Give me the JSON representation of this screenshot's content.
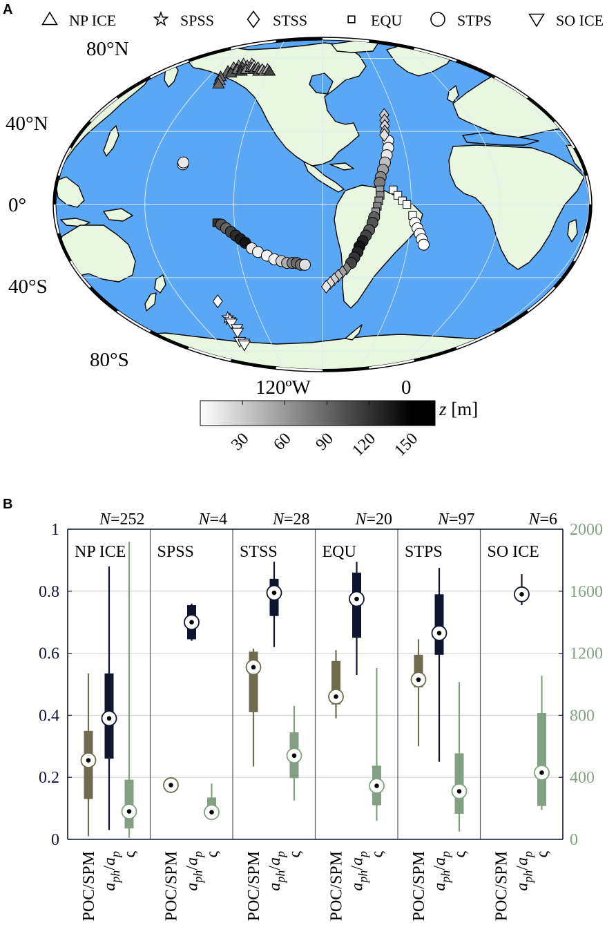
{
  "panel_a": {
    "letter": "A",
    "legend": [
      {
        "label": "NP ICE",
        "marker": "triangle-up"
      },
      {
        "label": "SPSS",
        "marker": "star"
      },
      {
        "label": "STSS",
        "marker": "diamond"
      },
      {
        "label": "EQU",
        "marker": "square"
      },
      {
        "label": "STPS",
        "marker": "circle"
      },
      {
        "label": "SO ICE",
        "marker": "triangle-down"
      }
    ],
    "lat_labels": [
      "80°N",
      "40°N",
      "0°",
      "40°S",
      "80°S"
    ],
    "lon_labels": [
      "120ºW",
      "0"
    ],
    "colorbar": {
      "label_var": "z",
      "label_unit": " [m]",
      "ticks": [
        "30",
        "60",
        "90",
        "120",
        "150"
      ],
      "range": [
        0,
        150
      ]
    },
    "colors": {
      "ocean": "#5aa8f5",
      "land": "#e8f7df",
      "grid": "#d8e8f8"
    },
    "stations": [
      {
        "group": "NP ICE",
        "marker": "triangle-up",
        "lon": -165,
        "lat": 73,
        "z": 95
      },
      {
        "group": "NP ICE",
        "marker": "triangle-up",
        "lon": -162,
        "lat": 75,
        "z": 70
      },
      {
        "group": "NP ICE",
        "marker": "triangle-up",
        "lon": -160,
        "lat": 72,
        "z": 110
      },
      {
        "group": "NP ICE",
        "marker": "triangle-up",
        "lon": -158,
        "lat": 76,
        "z": 55
      },
      {
        "group": "NP ICE",
        "marker": "triangle-up",
        "lon": -156,
        "lat": 74,
        "z": 85
      },
      {
        "group": "NP ICE",
        "marker": "triangle-up",
        "lon": -154,
        "lat": 77,
        "z": 40
      },
      {
        "group": "NP ICE",
        "marker": "triangle-up",
        "lon": -152,
        "lat": 75,
        "z": 100
      },
      {
        "group": "NP ICE",
        "marker": "triangle-up",
        "lon": -150,
        "lat": 73,
        "z": 120
      },
      {
        "group": "NP ICE",
        "marker": "triangle-up",
        "lon": -148,
        "lat": 76,
        "z": 60
      },
      {
        "group": "NP ICE",
        "marker": "triangle-up",
        "lon": -146,
        "lat": 74,
        "z": 75
      },
      {
        "group": "NP ICE",
        "marker": "triangle-up",
        "lon": -144,
        "lat": 77,
        "z": 30
      },
      {
        "group": "NP ICE",
        "marker": "triangle-up",
        "lon": -142,
        "lat": 75,
        "z": 90
      },
      {
        "group": "NP ICE",
        "marker": "triangle-up",
        "lon": -140,
        "lat": 76,
        "z": 20
      },
      {
        "group": "NP ICE",
        "marker": "triangle-up",
        "lon": -137,
        "lat": 74,
        "z": 110
      },
      {
        "group": "NP ICE",
        "marker": "triangle-up",
        "lon": -134,
        "lat": 75,
        "z": 65
      },
      {
        "group": "NP ICE",
        "marker": "triangle-up",
        "lon": -131,
        "lat": 73,
        "z": 100
      },
      {
        "group": "NP ICE",
        "marker": "triangle-up",
        "lon": -128,
        "lat": 74,
        "z": 35
      },
      {
        "group": "NP ICE",
        "marker": "triangle-up",
        "lon": -125,
        "lat": 73,
        "z": 80
      },
      {
        "group": "NP ICE",
        "marker": "triangle-up",
        "lon": -122,
        "lat": 74,
        "z": 45
      },
      {
        "group": "NP ICE",
        "marker": "triangle-up",
        "lon": -119,
        "lat": 73,
        "z": 120
      },
      {
        "group": "NP ICE",
        "marker": "triangle-up",
        "lon": -168,
        "lat": 70,
        "z": 95
      },
      {
        "group": "NP ICE",
        "marker": "triangle-up",
        "lon": -166,
        "lat": 68,
        "z": 80
      },
      {
        "group": "NP ICE",
        "marker": "triangle-up",
        "lon": -164,
        "lat": 66,
        "z": 100
      },
      {
        "group": "STPS",
        "marker": "circle",
        "lon": -158,
        "lat": 22,
        "z": 5
      },
      {
        "group": "STPS",
        "marker": "circle",
        "lon": -158,
        "lat": 23,
        "z": 15
      },
      {
        "group": "EQU",
        "marker": "square",
        "lon": -132,
        "lat": -10,
        "z": 130
      },
      {
        "group": "STPS",
        "marker": "circle",
        "lon": -129,
        "lat": -11,
        "z": 110
      },
      {
        "group": "STPS",
        "marker": "circle",
        "lon": -126,
        "lat": -13,
        "z": 100
      },
      {
        "group": "STPS",
        "marker": "circle",
        "lon": -123,
        "lat": -15,
        "z": 120
      },
      {
        "group": "STPS",
        "marker": "circle",
        "lon": -120,
        "lat": -17,
        "z": 135
      },
      {
        "group": "STPS",
        "marker": "circle",
        "lon": -117,
        "lat": -19,
        "z": 145
      },
      {
        "group": "STPS",
        "marker": "circle",
        "lon": -114,
        "lat": -21,
        "z": 150
      },
      {
        "group": "STPS",
        "marker": "circle",
        "lon": -110,
        "lat": -24,
        "z": 15
      },
      {
        "group": "STPS",
        "marker": "circle",
        "lon": -106,
        "lat": -26,
        "z": 10
      },
      {
        "group": "STPS",
        "marker": "circle",
        "lon": -100,
        "lat": -28,
        "z": 5
      },
      {
        "group": "STPS",
        "marker": "circle",
        "lon": -95,
        "lat": -30,
        "z": 10
      },
      {
        "group": "STPS",
        "marker": "circle",
        "lon": -90,
        "lat": -31,
        "z": 30
      },
      {
        "group": "STPS",
        "marker": "circle",
        "lon": -86,
        "lat": -32,
        "z": 50
      },
      {
        "group": "STPS",
        "marker": "circle",
        "lon": -82,
        "lat": -32,
        "z": 80
      },
      {
        "group": "STPS",
        "marker": "circle",
        "lon": -79,
        "lat": -32,
        "z": 95
      },
      {
        "group": "STPS",
        "marker": "circle",
        "lon": -76,
        "lat": -33,
        "z": 90
      },
      {
        "group": "STPS",
        "marker": "circle",
        "lon": -73,
        "lat": -33,
        "z": 20
      },
      {
        "group": "STPS",
        "marker": "circle",
        "lon": -11,
        "lat": 35,
        "z": 5
      },
      {
        "group": "STPS",
        "marker": "circle",
        "lon": -12,
        "lat": 31,
        "z": 10
      },
      {
        "group": "STPS",
        "marker": "circle",
        "lon": -14,
        "lat": 27,
        "z": 15
      },
      {
        "group": "STPS",
        "marker": "circle",
        "lon": -16,
        "lat": 23,
        "z": 40
      },
      {
        "group": "STPS",
        "marker": "circle",
        "lon": -18,
        "lat": 19,
        "z": 60
      },
      {
        "group": "STPS",
        "marker": "circle",
        "lon": -20,
        "lat": 15,
        "z": 75
      },
      {
        "group": "STPS",
        "marker": "circle",
        "lon": -21,
        "lat": 12,
        "z": 85
      },
      {
        "group": "STSS",
        "marker": "diamond",
        "lon": -9,
        "lat": 49,
        "z": 30
      },
      {
        "group": "STSS",
        "marker": "diamond",
        "lon": -10,
        "lat": 46,
        "z": 40
      },
      {
        "group": "STSS",
        "marker": "diamond",
        "lon": -11,
        "lat": 43,
        "z": 25
      },
      {
        "group": "STSS",
        "marker": "diamond",
        "lon": -12,
        "lat": 40,
        "z": 45
      },
      {
        "group": "STSS",
        "marker": "diamond",
        "lon": -13,
        "lat": 38,
        "z": 20
      },
      {
        "group": "EQU",
        "marker": "square",
        "lon": -21,
        "lat": 8,
        "z": 60
      },
      {
        "group": "EQU",
        "marker": "square",
        "lon": -21,
        "lat": 5,
        "z": 75
      },
      {
        "group": "EQU",
        "marker": "square",
        "lon": -22,
        "lat": 2,
        "z": 70
      },
      {
        "group": "EQU",
        "marker": "square",
        "lon": -23,
        "lat": -1,
        "z": 80
      },
      {
        "group": "EQU",
        "marker": "square",
        "lon": -24,
        "lat": -4,
        "z": 65
      },
      {
        "group": "STPS",
        "marker": "circle",
        "lon": -25,
        "lat": -7,
        "z": 100
      },
      {
        "group": "STPS",
        "marker": "circle",
        "lon": -26,
        "lat": -10,
        "z": 110
      },
      {
        "group": "STPS",
        "marker": "circle",
        "lon": -28,
        "lat": -14,
        "z": 105
      },
      {
        "group": "STPS",
        "marker": "circle",
        "lon": -30,
        "lat": -17,
        "z": 120
      },
      {
        "group": "STPS",
        "marker": "circle",
        "lon": -32,
        "lat": -20,
        "z": 140
      },
      {
        "group": "STPS",
        "marker": "circle",
        "lon": -34,
        "lat": -23,
        "z": 150
      },
      {
        "group": "STPS",
        "marker": "circle",
        "lon": -35,
        "lat": -26,
        "z": 140
      },
      {
        "group": "STPS",
        "marker": "circle",
        "lon": -37,
        "lat": -29,
        "z": 130
      },
      {
        "group": "STPS",
        "marker": "circle",
        "lon": -39,
        "lat": -32,
        "z": 120
      },
      {
        "group": "STSS",
        "marker": "diamond",
        "lon": -42,
        "lat": -35,
        "z": 80
      },
      {
        "group": "STSS",
        "marker": "diamond",
        "lon": -45,
        "lat": -37,
        "z": 60
      },
      {
        "group": "STSS",
        "marker": "diamond",
        "lon": -48,
        "lat": -39,
        "z": 40
      },
      {
        "group": "STSS",
        "marker": "diamond",
        "lon": -51,
        "lat": -41,
        "z": 30
      },
      {
        "group": "STSS",
        "marker": "diamond",
        "lon": -54,
        "lat": -43,
        "z": 20
      },
      {
        "group": "STSS",
        "marker": "diamond",
        "lon": -57,
        "lat": -45,
        "z": 15
      },
      {
        "group": "EQU",
        "marker": "square",
        "lon": -12,
        "lat": 8,
        "z": 0
      },
      {
        "group": "EQU",
        "marker": "square",
        "lon": -9,
        "lat": 5,
        "z": 0
      },
      {
        "group": "EQU",
        "marker": "square",
        "lon": -6,
        "lat": 2,
        "z": 5
      },
      {
        "group": "EQU",
        "marker": "square",
        "lon": -3,
        "lat": 0,
        "z": 0
      },
      {
        "group": "EQU",
        "marker": "square",
        "lon": 1,
        "lat": -6,
        "z": 0
      },
      {
        "group": "STPS",
        "marker": "circle",
        "lon": 3,
        "lat": -10,
        "z": 0
      },
      {
        "group": "STPS",
        "marker": "circle",
        "lon": 5,
        "lat": -13,
        "z": 0
      },
      {
        "group": "STPS",
        "marker": "circle",
        "lon": 7,
        "lat": -16,
        "z": 0
      },
      {
        "group": "STPS",
        "marker": "circle",
        "lon": 9,
        "lat": -19,
        "z": 0
      },
      {
        "group": "STPS",
        "marker": "circle",
        "lon": 11,
        "lat": -22,
        "z": 0
      },
      {
        "group": "STSS",
        "marker": "diamond",
        "lon": -150,
        "lat": -53,
        "z": 0
      },
      {
        "group": "SPSS",
        "marker": "star",
        "lon": -150,
        "lat": -62,
        "z": 0
      },
      {
        "group": "SPSS",
        "marker": "star",
        "lon": -149,
        "lat": -63,
        "z": 0
      },
      {
        "group": "SO ICE",
        "marker": "triangle-down",
        "lon": -150,
        "lat": -65,
        "z": 0
      },
      {
        "group": "SO ICE",
        "marker": "triangle-down",
        "lon": -148,
        "lat": -68,
        "z": 0
      },
      {
        "group": "SO ICE",
        "marker": "triangle-down",
        "lon": -150,
        "lat": -70,
        "z": 0
      },
      {
        "group": "SO ICE",
        "marker": "triangle-down",
        "lon": -155,
        "lat": -75,
        "z": 0
      },
      {
        "group": "SO ICE",
        "marker": "triangle-down",
        "lon": -152,
        "lat": -76,
        "z": 0
      },
      {
        "group": "SO ICE",
        "marker": "triangle-down",
        "lon": -153,
        "lat": -77,
        "z": 0
      }
    ]
  },
  "panel_b": {
    "letter": "B",
    "left_ticks": [
      "0",
      "0.2",
      "0.4",
      "0.6",
      "0.8",
      "1"
    ],
    "right_ticks": [
      "0",
      "400",
      "800",
      "1200",
      "1600",
      "2000"
    ],
    "variables": [
      "POC/SPM",
      "a_ph/a_p",
      "ς"
    ],
    "xtick": {
      "poc": "POC/SPM",
      "aph_a": "a",
      "aph_ph": "ph",
      "aph_slash": "/",
      "aph_b": "a",
      "aph_p": "p",
      "sigma": "ς"
    },
    "n_prefix": "N",
    "colors": {
      "poc": "#6e6b4f",
      "aph": "#0f1530",
      "sigma": "#83a082",
      "right_axis": "#83a082",
      "left_axis": "#0f1530"
    }
  },
  "chart_data": {
    "type": "box",
    "title": "",
    "left_ylabel": "",
    "right_ylabel": "",
    "left_ylim": [
      0,
      1
    ],
    "right_ylim": [
      0,
      2000
    ],
    "grid": true,
    "variables": [
      "POC/SPM",
      "a_ph/a_p",
      "ς"
    ],
    "groups": [
      {
        "name": "NP ICE",
        "N": "252",
        "poc": {
          "min": 0.01,
          "q1": 0.13,
          "median": 0.255,
          "q3": 0.35,
          "max": 0.535
        },
        "aph": {
          "min": 0.03,
          "q1": 0.26,
          "median": 0.39,
          "q3": 0.535,
          "max": 0.88
        },
        "sigma": {
          "min": 10,
          "q1": 70,
          "median": 180,
          "q3": 385,
          "max": 1920
        }
      },
      {
        "name": "SPSS",
        "N": "4",
        "poc": {
          "min": 0.175,
          "q1": 0.175,
          "median": 0.175,
          "q3": 0.175,
          "max": 0.175
        },
        "aph": {
          "min": 0.64,
          "q1": 0.645,
          "median": 0.7,
          "q3": 0.755,
          "max": 0.76
        },
        "sigma": {
          "min": 160,
          "q1": 165,
          "median": 175,
          "q3": 270,
          "max": 360
        }
      },
      {
        "name": "STSS",
        "N": "28",
        "poc": {
          "min": 0.235,
          "q1": 0.41,
          "median": 0.555,
          "q3": 0.605,
          "max": 0.615
        },
        "aph": {
          "min": 0.62,
          "q1": 0.72,
          "median": 0.795,
          "q3": 0.84,
          "max": 0.895
        },
        "sigma": {
          "min": 250,
          "q1": 395,
          "median": 540,
          "q3": 690,
          "max": 860
        }
      },
      {
        "name": "EQU",
        "N": "20",
        "poc": {
          "min": 0.39,
          "q1": 0.435,
          "median": 0.46,
          "q3": 0.575,
          "max": 0.61
        },
        "aph": {
          "min": 0.53,
          "q1": 0.65,
          "median": 0.775,
          "q3": 0.86,
          "max": 0.895
        },
        "sigma": {
          "min": 120,
          "q1": 220,
          "median": 345,
          "q3": 475,
          "max": 1105
        }
      },
      {
        "name": "STPS",
        "N": "97",
        "poc": {
          "min": 0.3,
          "q1": 0.49,
          "median": 0.515,
          "q3": 0.595,
          "max": 0.645
        },
        "aph": {
          "min": 0.25,
          "q1": 0.595,
          "median": 0.665,
          "q3": 0.79,
          "max": 0.875
        },
        "sigma": {
          "min": 50,
          "q1": 165,
          "median": 310,
          "q3": 555,
          "max": 1015
        }
      },
      {
        "name": "SO ICE",
        "N": "6",
        "poc": null,
        "aph": {
          "min": 0.755,
          "q1": 0.775,
          "median": 0.79,
          "q3": 0.81,
          "max": 0.855
        },
        "sigma": {
          "min": 190,
          "q1": 215,
          "median": 430,
          "q3": 815,
          "max": 1055
        }
      }
    ]
  }
}
